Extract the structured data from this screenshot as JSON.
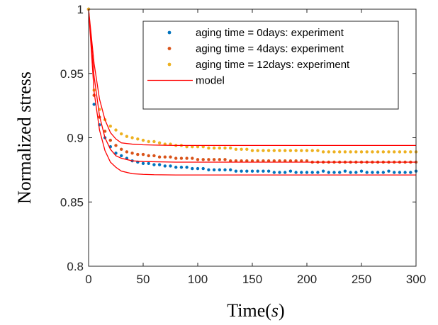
{
  "chart_data": {
    "type": "scatter",
    "title": "",
    "xlabel": "Time",
    "xlabel_unit": "s",
    "ylabel": "Normalized stress",
    "xlim": [
      0,
      300
    ],
    "ylim": [
      0.8,
      1.0
    ],
    "x_ticks": [
      "0",
      "50",
      "100",
      "150",
      "200",
      "250",
      "300"
    ],
    "y_ticks": [
      "0.8",
      "0.85",
      "0.9",
      "0.95",
      "1"
    ],
    "grid": false,
    "legend_position": "top-right",
    "series": [
      {
        "name": "aging time = 0days: experiment",
        "color": "#0072BD",
        "marker": "dot",
        "x": [
          0,
          5,
          10,
          15,
          20,
          25,
          30,
          35,
          40,
          45,
          50,
          55,
          60,
          65,
          70,
          75,
          80,
          85,
          90,
          95,
          100,
          105,
          110,
          115,
          120,
          125,
          130,
          135,
          140,
          145,
          150,
          155,
          160,
          165,
          170,
          175,
          180,
          185,
          190,
          195,
          200,
          205,
          210,
          215,
          220,
          225,
          230,
          235,
          240,
          245,
          250,
          255,
          260,
          265,
          270,
          275,
          280,
          285,
          290,
          295,
          300
        ],
        "y": [
          1.0,
          0.926,
          0.91,
          0.9,
          0.893,
          0.888,
          0.886,
          0.884,
          0.882,
          0.881,
          0.88,
          0.88,
          0.879,
          0.879,
          0.878,
          0.878,
          0.877,
          0.877,
          0.877,
          0.876,
          0.876,
          0.876,
          0.875,
          0.875,
          0.875,
          0.875,
          0.875,
          0.874,
          0.874,
          0.874,
          0.874,
          0.874,
          0.874,
          0.874,
          0.873,
          0.873,
          0.873,
          0.874,
          0.873,
          0.873,
          0.873,
          0.873,
          0.873,
          0.874,
          0.873,
          0.873,
          0.873,
          0.874,
          0.873,
          0.873,
          0.874,
          0.873,
          0.873,
          0.873,
          0.873,
          0.874,
          0.873,
          0.873,
          0.873,
          0.873,
          0.874
        ]
      },
      {
        "name": "aging time = 4days: experiment",
        "color": "#D95319",
        "marker": "dot",
        "x": [
          0,
          5,
          10,
          15,
          20,
          25,
          30,
          35,
          40,
          45,
          50,
          55,
          60,
          65,
          70,
          75,
          80,
          85,
          90,
          95,
          100,
          105,
          110,
          115,
          120,
          125,
          130,
          135,
          140,
          145,
          150,
          155,
          160,
          165,
          170,
          175,
          180,
          185,
          190,
          195,
          200,
          205,
          210,
          215,
          220,
          225,
          230,
          235,
          240,
          245,
          250,
          255,
          260,
          265,
          270,
          275,
          280,
          285,
          290,
          295,
          300
        ],
        "y": [
          1.0,
          0.933,
          0.916,
          0.905,
          0.898,
          0.894,
          0.891,
          0.889,
          0.888,
          0.887,
          0.887,
          0.886,
          0.886,
          0.885,
          0.885,
          0.885,
          0.884,
          0.884,
          0.884,
          0.884,
          0.883,
          0.883,
          0.883,
          0.883,
          0.883,
          0.883,
          0.882,
          0.882,
          0.882,
          0.882,
          0.882,
          0.882,
          0.882,
          0.882,
          0.882,
          0.882,
          0.882,
          0.882,
          0.882,
          0.882,
          0.882,
          0.881,
          0.881,
          0.881,
          0.881,
          0.881,
          0.881,
          0.881,
          0.881,
          0.881,
          0.881,
          0.881,
          0.881,
          0.881,
          0.881,
          0.881,
          0.881,
          0.881,
          0.881,
          0.881,
          0.881
        ]
      },
      {
        "name": "aging time = 12days: experiment",
        "color": "#EDB120",
        "marker": "dot",
        "x": [
          0,
          5,
          10,
          15,
          20,
          25,
          30,
          35,
          40,
          45,
          50,
          55,
          60,
          65,
          70,
          75,
          80,
          85,
          90,
          95,
          100,
          105,
          110,
          115,
          120,
          125,
          130,
          135,
          140,
          145,
          150,
          155,
          160,
          165,
          170,
          175,
          180,
          185,
          190,
          195,
          200,
          205,
          210,
          215,
          220,
          225,
          230,
          235,
          240,
          245,
          250,
          255,
          260,
          265,
          270,
          275,
          280,
          285,
          290,
          295,
          300
        ],
        "y": [
          1.0,
          0.937,
          0.922,
          0.914,
          0.909,
          0.906,
          0.903,
          0.901,
          0.9,
          0.899,
          0.898,
          0.897,
          0.897,
          0.896,
          0.895,
          0.895,
          0.894,
          0.894,
          0.893,
          0.893,
          0.893,
          0.893,
          0.892,
          0.892,
          0.892,
          0.892,
          0.892,
          0.891,
          0.891,
          0.891,
          0.89,
          0.89,
          0.89,
          0.89,
          0.89,
          0.89,
          0.89,
          0.89,
          0.89,
          0.89,
          0.89,
          0.89,
          0.89,
          0.889,
          0.889,
          0.889,
          0.889,
          0.889,
          0.889,
          0.889,
          0.889,
          0.889,
          0.889,
          0.889,
          0.889,
          0.889,
          0.889,
          0.889,
          0.889,
          0.889,
          0.889
        ]
      },
      {
        "name": "model",
        "color": "#FF0000",
        "marker": "line",
        "curves": [
          {
            "x": [
              0,
              5,
              10,
              15,
              20,
              25,
              30,
              40,
              50,
              60,
              80,
              100,
              150,
              200,
              250,
              300
            ],
            "y": [
              1.0,
              0.936,
              0.906,
              0.89,
              0.881,
              0.877,
              0.874,
              0.872,
              0.8715,
              0.8712,
              0.871,
              0.871,
              0.871,
              0.871,
              0.871,
              0.871
            ]
          },
          {
            "x": [
              0,
              5,
              10,
              15,
              20,
              25,
              30,
              40,
              50,
              60,
              80,
              100,
              150,
              200,
              250,
              300
            ],
            "y": [
              1.0,
              0.948,
              0.917,
              0.9,
              0.891,
              0.886,
              0.884,
              0.882,
              0.8815,
              0.8813,
              0.881,
              0.881,
              0.881,
              0.881,
              0.881,
              0.881
            ]
          },
          {
            "x": [
              0,
              5,
              10,
              15,
              20,
              25,
              30,
              40,
              50,
              60,
              80,
              100,
              150,
              200,
              250,
              300
            ],
            "y": [
              1.0,
              0.958,
              0.93,
              0.914,
              0.904,
              0.899,
              0.896,
              0.895,
              0.8945,
              0.8943,
              0.894,
              0.894,
              0.894,
              0.894,
              0.894,
              0.894
            ]
          }
        ]
      }
    ]
  }
}
